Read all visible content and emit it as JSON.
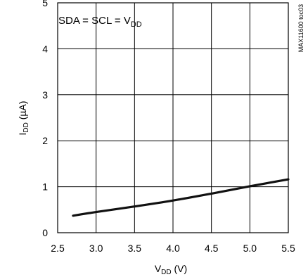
{
  "chart_data": {
    "type": "line",
    "title": "",
    "xlabel": {
      "main": "V",
      "sub": "DD",
      "unit": " (V)"
    },
    "ylabel": {
      "main": "I",
      "sub": "DD",
      "unit": " (µA)"
    },
    "xlim": [
      2.5,
      5.5
    ],
    "ylim": [
      0,
      5
    ],
    "x_ticks": [
      "2.5",
      "3.0",
      "3.5",
      "4.0",
      "4.5",
      "5.0",
      "5.5"
    ],
    "y_ticks": [
      "0",
      "1",
      "2",
      "3",
      "4",
      "5"
    ],
    "grid": true,
    "annotation": {
      "main": "SDA = SCL = V",
      "sub": "DD"
    },
    "side_code": "MAX11600 toc03",
    "series": [
      {
        "x": [
          2.7,
          3.0,
          3.5,
          4.0,
          4.5,
          5.0,
          5.5
        ],
        "y": [
          0.37,
          0.45,
          0.57,
          0.7,
          0.85,
          1.01,
          1.16
        ]
      }
    ]
  }
}
